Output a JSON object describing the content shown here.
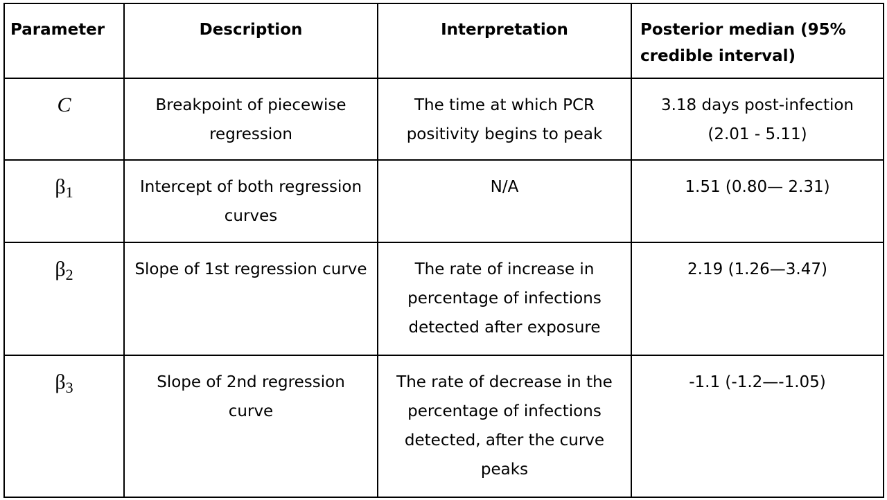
{
  "headers": {
    "parameter": "Parameter",
    "description": "Description",
    "interpretation": "Interpretation",
    "posterior": "Posterior median (95% credible interval)"
  },
  "rows": [
    {
      "symbol": "C",
      "subscript": "",
      "description": "Breakpoint of piecewise regression",
      "interpretation": "The time at which PCR positivity begins to peak",
      "posterior": "3.18 days post-infection (2.01 - 5.11)"
    },
    {
      "symbol": "β",
      "subscript": "1",
      "description": "Intercept of both regression curves",
      "interpretation": "N/A",
      "posterior": "1.51 (0.80— 2.31)"
    },
    {
      "symbol": "β",
      "subscript": "2",
      "description": "Slope of 1st regression curve",
      "interpretation": "The rate of increase in percentage of infections detected after exposure",
      "posterior": "2.19 (1.26—3.47)"
    },
    {
      "symbol": "β",
      "subscript": "3",
      "description": "Slope of 2nd regression curve",
      "interpretation": "The rate of decrease in the percentage of infections detected, after the curve peaks",
      "posterior": "-1.1 (-1.2—-1.05)"
    }
  ]
}
